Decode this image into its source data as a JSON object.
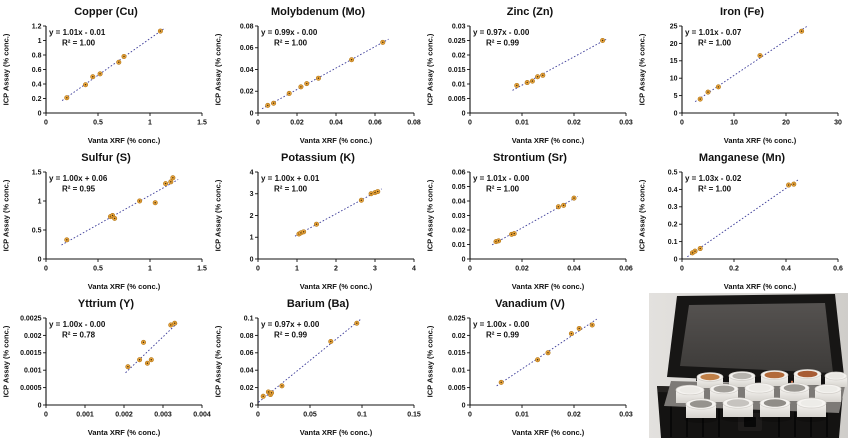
{
  "figure": {
    "kind": "scatter-correlation-grid",
    "n_charts": 11
  },
  "axis_labels": {
    "x": "Vanta XRF (% conc.)",
    "y": "ICP Assay (% conc.)"
  },
  "colors": {
    "marker_fill": "#E9A33C",
    "marker_edge": "#B07515",
    "marker_center": "#40300A",
    "trendline": "#3C3C99",
    "axis": "#111111",
    "text": "#111111"
  },
  "chart_data": [
    {
      "type": "scatter",
      "title": "Copper (Cu)",
      "equation": "y = 1.01x - 0.01",
      "r2": "R² = 1.00",
      "xlim": [
        0,
        1.5
      ],
      "ylim": [
        0,
        1.2
      ],
      "xticks": [
        "0",
        "0.5",
        "1",
        "1.5"
      ],
      "yticks": [
        "0",
        "0.2",
        "0.4",
        "0.6",
        "0.8",
        "1",
        "1.2"
      ],
      "points": [
        [
          0.2,
          0.21
        ],
        [
          0.38,
          0.39
        ],
        [
          0.45,
          0.5
        ],
        [
          0.52,
          0.54
        ],
        [
          0.7,
          0.7
        ],
        [
          0.75,
          0.78
        ],
        [
          1.1,
          1.13
        ]
      ]
    },
    {
      "type": "scatter",
      "title": "Molybdenum (Mo)",
      "equation": "y = 0.99x - 0.00",
      "r2": "R² = 1.00",
      "xlim": [
        0,
        0.08
      ],
      "ylim": [
        0,
        0.08
      ],
      "xticks": [
        "0",
        "0.02",
        "0.04",
        "0.06",
        "0.08"
      ],
      "yticks": [
        "0",
        "0.02",
        "0.04",
        "0.06",
        "0.08"
      ],
      "points": [
        [
          0.005,
          0.007
        ],
        [
          0.008,
          0.009
        ],
        [
          0.016,
          0.018
        ],
        [
          0.022,
          0.024
        ],
        [
          0.025,
          0.027
        ],
        [
          0.031,
          0.032
        ],
        [
          0.048,
          0.049
        ],
        [
          0.064,
          0.065
        ]
      ]
    },
    {
      "type": "scatter",
      "title": "Zinc (Zn)",
      "equation": "y = 0.97x - 0.00",
      "r2": "R² = 0.99",
      "xlim": [
        0,
        0.03
      ],
      "ylim": [
        0,
        0.03
      ],
      "xticks": [
        "0",
        "0.01",
        "0.02",
        "0.03"
      ],
      "yticks": [
        "0",
        "0.005",
        "0.01",
        "0.015",
        "0.02",
        "0.025",
        "0.03"
      ],
      "points": [
        [
          0.009,
          0.0095
        ],
        [
          0.011,
          0.0105
        ],
        [
          0.012,
          0.011
        ],
        [
          0.013,
          0.0125
        ],
        [
          0.014,
          0.013
        ],
        [
          0.0255,
          0.025
        ]
      ]
    },
    {
      "type": "scatter",
      "title": "Iron (Fe)",
      "equation": "y = 1.01x - 0.07",
      "r2": "R² = 1.00",
      "xlim": [
        0,
        30
      ],
      "ylim": [
        0,
        25
      ],
      "xticks": [
        "0",
        "10",
        "20",
        "30"
      ],
      "yticks": [
        "0",
        "5",
        "10",
        "15",
        "20",
        "25"
      ],
      "points": [
        [
          3.5,
          4
        ],
        [
          5,
          6
        ],
        [
          7,
          7.5
        ],
        [
          15,
          16.5
        ],
        [
          23,
          23.5
        ]
      ]
    },
    {
      "type": "scatter",
      "title": "Sulfur (S)",
      "equation": "y = 1.00x + 0.06",
      "r2": "R² = 0.95",
      "xlim": [
        0,
        1.5
      ],
      "ylim": [
        0,
        1.5
      ],
      "xticks": [
        "0",
        "0.5",
        "1",
        "1.5"
      ],
      "yticks": [
        "0",
        "0.5",
        "1",
        "1.5"
      ],
      "points": [
        [
          0.2,
          0.33
        ],
        [
          0.62,
          0.73
        ],
        [
          0.64,
          0.75
        ],
        [
          0.66,
          0.7
        ],
        [
          0.9,
          1.0
        ],
        [
          1.05,
          0.97
        ],
        [
          1.15,
          1.3
        ],
        [
          1.2,
          1.33
        ],
        [
          1.22,
          1.4
        ]
      ]
    },
    {
      "type": "scatter",
      "title": "Potassium (K)",
      "equation": "y = 1.00x + 0.01",
      "r2": "R² = 1.00",
      "xlim": [
        0,
        4
      ],
      "ylim": [
        0,
        4
      ],
      "xticks": [
        "0",
        "1",
        "2",
        "3",
        "4"
      ],
      "yticks": [
        "0",
        "1",
        "2",
        "3",
        "4"
      ],
      "points": [
        [
          1.05,
          1.15
        ],
        [
          1.1,
          1.2
        ],
        [
          1.17,
          1.25
        ],
        [
          1.5,
          1.6
        ],
        [
          2.65,
          2.7
        ],
        [
          2.9,
          3.0
        ],
        [
          3.0,
          3.05
        ],
        [
          3.07,
          3.1
        ]
      ]
    },
    {
      "type": "scatter",
      "title": "Strontium (Sr)",
      "equation": "y = 1.01x - 0.00",
      "r2": "R² = 1.00",
      "xlim": [
        0,
        0.06
      ],
      "ylim": [
        0,
        0.06
      ],
      "xticks": [
        "0",
        "0.02",
        "0.04",
        "0.06"
      ],
      "yticks": [
        "0",
        "0.01",
        "0.02",
        "0.03",
        "0.04",
        "0.05",
        "0.06"
      ],
      "points": [
        [
          0.01,
          0.012
        ],
        [
          0.011,
          0.0125
        ],
        [
          0.016,
          0.017
        ],
        [
          0.017,
          0.0175
        ],
        [
          0.034,
          0.036
        ],
        [
          0.036,
          0.037
        ],
        [
          0.04,
          0.042
        ]
      ]
    },
    {
      "type": "scatter",
      "title": "Manganese (Mn)",
      "equation": "y = 1.03x - 0.02",
      "r2": "R² = 1.00",
      "xlim": [
        0,
        0.6
      ],
      "ylim": [
        0,
        0.5
      ],
      "xticks": [
        "0",
        "0.2",
        "0.4",
        "0.6"
      ],
      "yticks": [
        "0",
        "0.1",
        "0.2",
        "0.3",
        "0.4",
        "0.5"
      ],
      "points": [
        [
          0.04,
          0.035
        ],
        [
          0.05,
          0.045
        ],
        [
          0.07,
          0.06
        ],
        [
          0.41,
          0.425
        ],
        [
          0.43,
          0.43
        ]
      ]
    },
    {
      "type": "scatter",
      "title": "Yttrium (Y)",
      "equation": "y = 1.00x - 0.00",
      "r2": "R² = 0.78",
      "xlim": [
        0,
        0.004
      ],
      "ylim": [
        0,
        0.0025
      ],
      "xticks": [
        "0",
        "0.001",
        "0.002",
        "0.003",
        "0.004"
      ],
      "yticks": [
        "0",
        "0.0005",
        "0.001",
        "0.0015",
        "0.002",
        "0.0025"
      ],
      "points": [
        [
          0.0021,
          0.0011
        ],
        [
          0.0024,
          0.0013
        ],
        [
          0.0025,
          0.0018
        ],
        [
          0.0026,
          0.0012
        ],
        [
          0.0027,
          0.0013
        ],
        [
          0.0032,
          0.0023
        ],
        [
          0.0033,
          0.00235
        ]
      ]
    },
    {
      "type": "scatter",
      "title": "Barium (Ba)",
      "equation": "y = 0.97x + 0.00",
      "r2": "R² = 0.99",
      "xlim": [
        0,
        0.15
      ],
      "ylim": [
        0,
        0.1
      ],
      "xticks": [
        "0",
        "0.05",
        "0.1",
        "0.15"
      ],
      "yticks": [
        "0",
        "0.02",
        "0.04",
        "0.06",
        "0.08",
        "0.1"
      ],
      "points": [
        [
          0.005,
          0.01
        ],
        [
          0.01,
          0.015
        ],
        [
          0.012,
          0.012
        ],
        [
          0.013,
          0.014
        ],
        [
          0.023,
          0.022
        ],
        [
          0.07,
          0.073
        ],
        [
          0.095,
          0.094
        ]
      ]
    },
    {
      "type": "scatter",
      "title": "Vanadium (V)",
      "equation": "y = 1.00x - 0.00",
      "r2": "R² = 0.99",
      "xlim": [
        0,
        0.03
      ],
      "ylim": [
        0,
        0.025
      ],
      "xticks": [
        "0",
        "0.01",
        "0.02",
        "0.03"
      ],
      "yticks": [
        "0",
        "0.005",
        "0.01",
        "0.015",
        "0.02",
        "0.025"
      ],
      "points": [
        [
          0.006,
          0.0065
        ],
        [
          0.013,
          0.013
        ],
        [
          0.015,
          0.015
        ],
        [
          0.0195,
          0.0205
        ],
        [
          0.021,
          0.022
        ],
        [
          0.0235,
          0.023
        ]
      ]
    }
  ]
}
